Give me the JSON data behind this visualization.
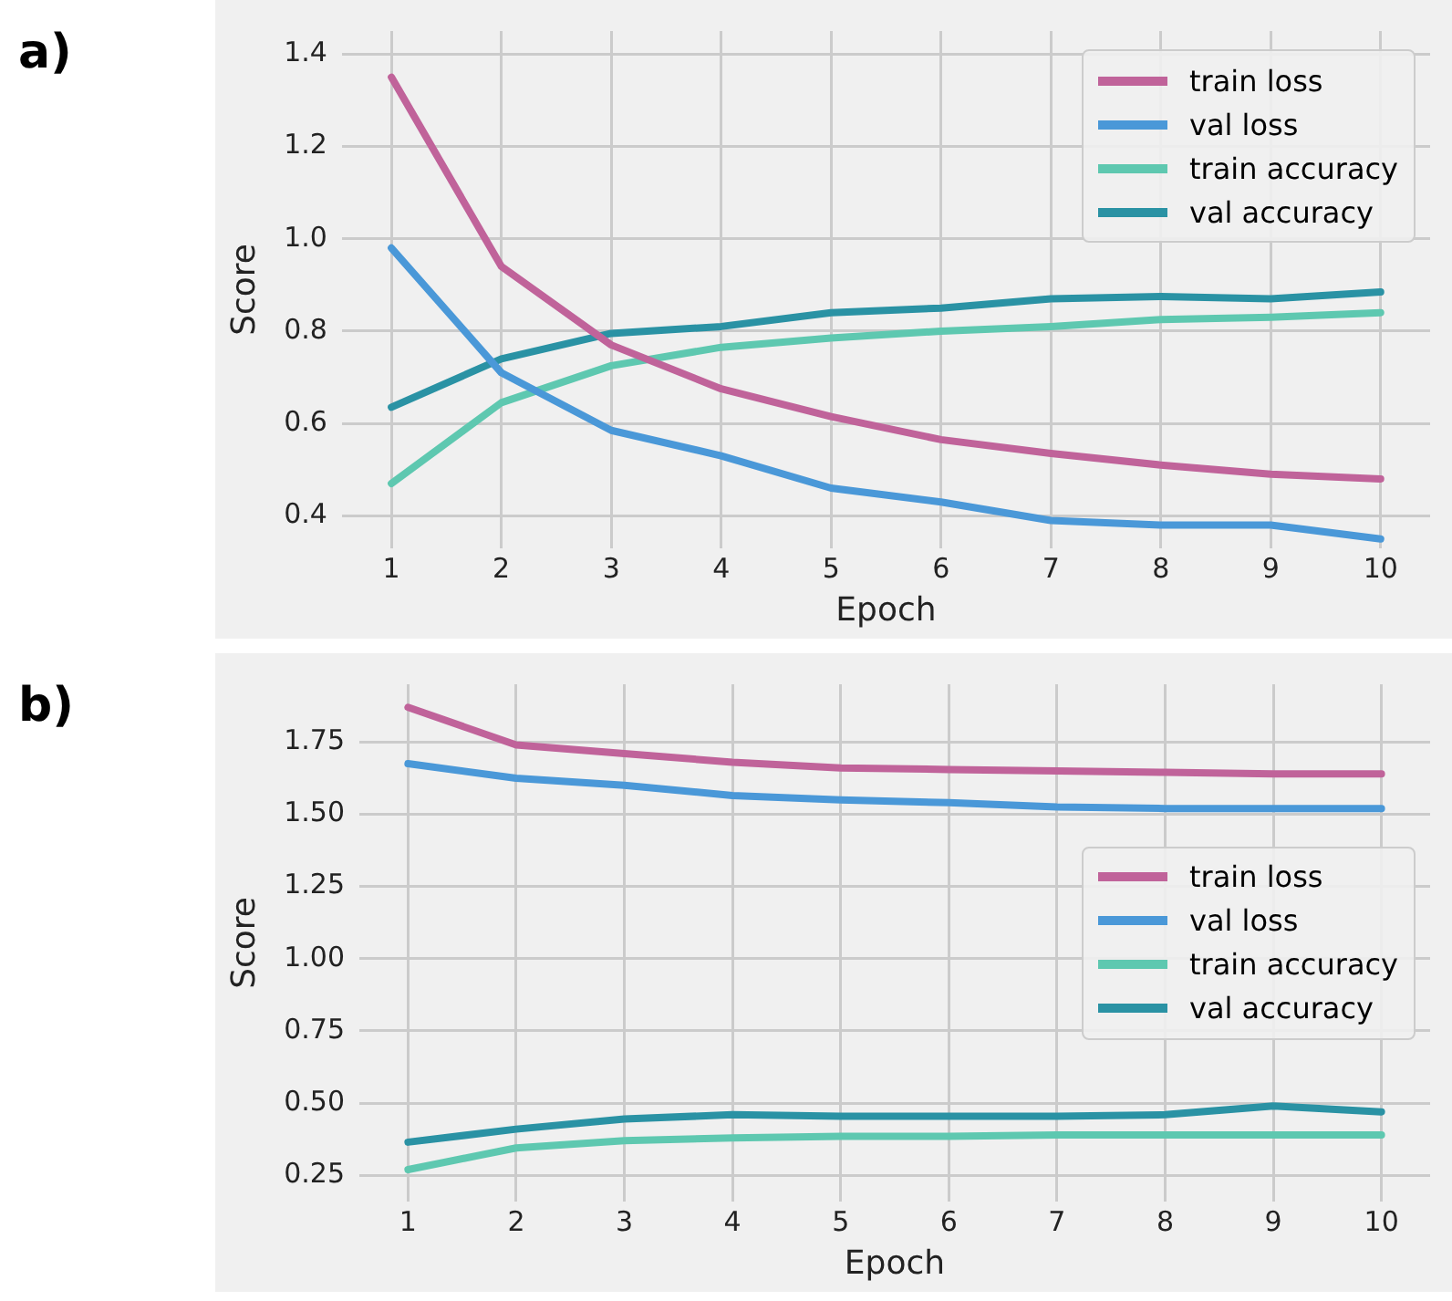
{
  "chart_data": [
    {
      "type": "line",
      "title": "a)",
      "xlabel": "Epoch",
      "ylabel": "Score",
      "x": [
        1,
        2,
        3,
        4,
        5,
        6,
        7,
        8,
        9,
        10
      ],
      "xlim": [
        0.55,
        10.45
      ],
      "xticks": [
        1,
        2,
        3,
        4,
        5,
        6,
        7,
        8,
        9,
        10
      ],
      "ylim": [
        0.33,
        1.45
      ],
      "yticks": [
        0.4,
        0.6,
        0.8,
        {
          "value": 1,
          "label": "1.0"
        },
        1.2,
        1.4
      ],
      "grid": true,
      "legend": "top right",
      "series": [
        {
          "name": "train loss",
          "color": "#c0639a",
          "values": [
            1.35,
            0.94,
            0.77,
            0.675,
            0.615,
            0.565,
            0.535,
            0.51,
            0.49,
            0.48
          ]
        },
        {
          "name": "val loss",
          "color": "#4a98d8",
          "values": [
            0.98,
            0.71,
            0.585,
            0.53,
            0.46,
            0.43,
            0.39,
            0.38,
            0.38,
            0.35
          ]
        },
        {
          "name": "train accuracy",
          "color": "#5ec8b0",
          "values": [
            0.47,
            0.645,
            0.725,
            0.765,
            0.785,
            0.8,
            0.81,
            0.825,
            0.83,
            0.84
          ]
        },
        {
          "name": "val accuracy",
          "color": "#2a92a4",
          "values": [
            0.635,
            0.74,
            0.795,
            0.81,
            0.84,
            0.85,
            0.87,
            0.875,
            0.87,
            0.885
          ]
        }
      ]
    },
    {
      "type": "line",
      "title": "b)",
      "xlabel": "Epoch",
      "ylabel": "Score",
      "x": [
        1,
        2,
        3,
        4,
        5,
        6,
        7,
        8,
        9,
        10
      ],
      "xlim": [
        0.55,
        10.45
      ],
      "xticks": [
        1,
        2,
        3,
        4,
        5,
        6,
        7,
        8,
        9,
        10
      ],
      "ylim": [
        0.16,
        1.95
      ],
      "yticks": [
        0.25,
        {
          "value": 0.5,
          "label": "0.50"
        },
        0.75,
        {
          "value": 1,
          "label": "1.00"
        },
        1.25,
        {
          "value": 1.5,
          "label": "1.50"
        },
        1.75
      ],
      "grid": true,
      "legend": "right",
      "series": [
        {
          "name": "train loss",
          "color": "#c0639a",
          "values": [
            1.87,
            1.74,
            1.71,
            1.68,
            1.66,
            1.655,
            1.65,
            1.645,
            1.64,
            1.64
          ]
        },
        {
          "name": "val loss",
          "color": "#4a98d8",
          "values": [
            1.675,
            1.625,
            1.6,
            1.565,
            1.55,
            1.54,
            1.525,
            1.52,
            1.52,
            1.52
          ]
        },
        {
          "name": "train accuracy",
          "color": "#5ec8b0",
          "values": [
            0.27,
            0.345,
            0.37,
            0.38,
            0.385,
            0.385,
            0.39,
            0.39,
            0.39,
            0.39
          ]
        },
        {
          "name": "val accuracy",
          "color": "#2a92a4",
          "values": [
            0.365,
            0.41,
            0.445,
            0.46,
            0.455,
            0.455,
            0.455,
            0.46,
            0.49,
            0.47
          ]
        }
      ]
    }
  ]
}
